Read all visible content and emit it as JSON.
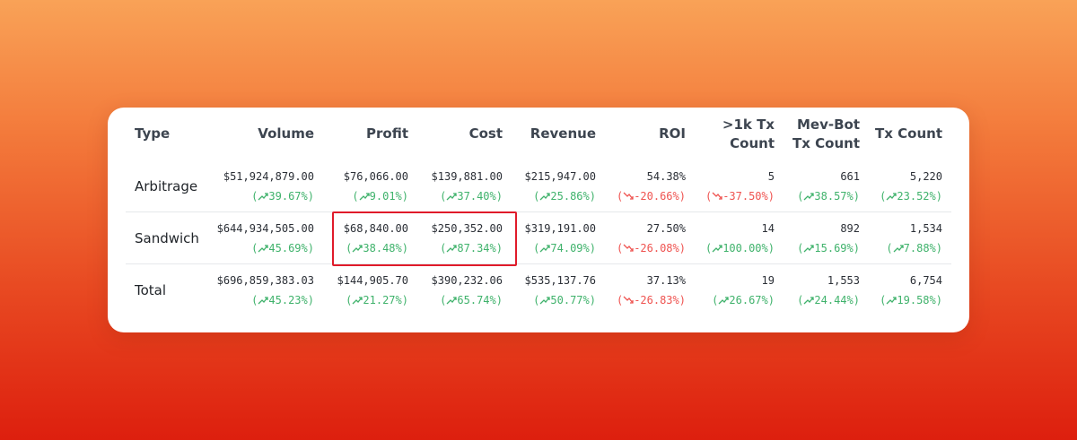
{
  "table": {
    "headers": [
      "Type",
      "Volume",
      "Profit",
      "Cost",
      "Revenue",
      "ROI",
      [
        ">1k Tx",
        "Count"
      ],
      [
        "Mev-Bot",
        "Tx Count"
      ],
      "Tx Count"
    ],
    "rows": [
      {
        "type": "Arbitrage",
        "cells": [
          {
            "value": "$51,924,879.00",
            "change": "39.67%",
            "dir": "up"
          },
          {
            "value": "$76,066.00",
            "change": "9.01%",
            "dir": "up"
          },
          {
            "value": "$139,881.00",
            "change": "37.40%",
            "dir": "up"
          },
          {
            "value": "$215,947.00",
            "change": "25.86%",
            "dir": "up"
          },
          {
            "value": "54.38%",
            "change": "-20.66%",
            "dir": "down"
          },
          {
            "value": "5",
            "change": "-37.50%",
            "dir": "down"
          },
          {
            "value": "661",
            "change": "38.57%",
            "dir": "up"
          },
          {
            "value": "5,220",
            "change": "23.52%",
            "dir": "up"
          }
        ]
      },
      {
        "type": "Sandwich",
        "cells": [
          {
            "value": "$644,934,505.00",
            "change": "45.69%",
            "dir": "up"
          },
          {
            "value": "$68,840.00",
            "change": "38.48%",
            "dir": "up"
          },
          {
            "value": "$250,352.00",
            "change": "87.34%",
            "dir": "up"
          },
          {
            "value": "$319,191.00",
            "change": "74.09%",
            "dir": "up"
          },
          {
            "value": "27.50%",
            "change": "-26.08%",
            "dir": "down"
          },
          {
            "value": "14",
            "change": "100.00%",
            "dir": "up"
          },
          {
            "value": "892",
            "change": "15.69%",
            "dir": "up"
          },
          {
            "value": "1,534",
            "change": "7.88%",
            "dir": "up"
          }
        ]
      },
      {
        "type": "Total",
        "cells": [
          {
            "value": "$696,859,383.03",
            "change": "45.23%",
            "dir": "up"
          },
          {
            "value": "$144,905.70",
            "change": "21.27%",
            "dir": "up"
          },
          {
            "value": "$390,232.06",
            "change": "65.74%",
            "dir": "up"
          },
          {
            "value": "$535,137.76",
            "change": "50.77%",
            "dir": "up"
          },
          {
            "value": "37.13%",
            "change": "-26.83%",
            "dir": "down"
          },
          {
            "value": "19",
            "change": "26.67%",
            "dir": "up"
          },
          {
            "value": "1,553",
            "change": "24.44%",
            "dir": "up"
          },
          {
            "value": "6,754",
            "change": "19.58%",
            "dir": "up"
          }
        ]
      }
    ]
  },
  "colors": {
    "up": "#3fb26b",
    "down": "#ef5350",
    "highlight": "#e01b2a"
  },
  "icons": {
    "up": "trend-up-icon",
    "down": "trend-down-icon"
  }
}
